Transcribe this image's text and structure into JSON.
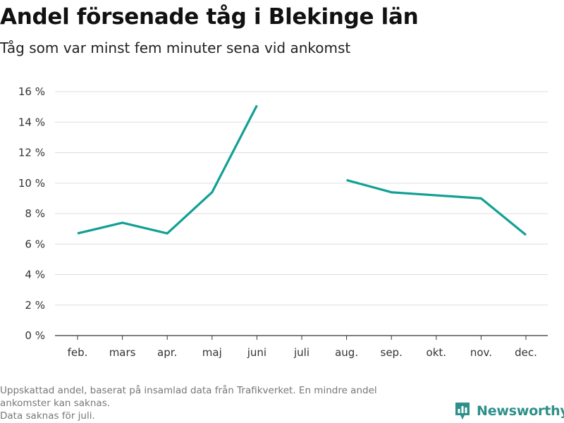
{
  "header": {
    "title": "Andel försenade tåg i Blekinge län",
    "subtitle": "Tåg som var minst fem minuter sena vid ankomst"
  },
  "footer": {
    "note_line1": "Uppskattad andel, baserat på insamlad data från Trafikverket. En mindre andel",
    "note_line2": "ankomster kan saknas.",
    "note_line3": "Data saknas för juli.",
    "brand": "Newsworthy"
  },
  "colors": {
    "line": "#12a094",
    "grid": "#dddddd",
    "axis": "#333333",
    "brand": "#2f8f89"
  },
  "chart_data": {
    "type": "line",
    "categories": [
      "feb.",
      "mars",
      "apr.",
      "maj",
      "juni",
      "juli",
      "aug.",
      "sep.",
      "okt.",
      "nov.",
      "dec."
    ],
    "series": [
      {
        "values": [
          6.7,
          7.4,
          6.7,
          9.4,
          15.1,
          null,
          10.2,
          9.4,
          9.2,
          9.0,
          6.6
        ]
      }
    ],
    "y_ticks": [
      0,
      2,
      4,
      6,
      8,
      10,
      12,
      14,
      16
    ],
    "y_tick_labels": [
      "0 %",
      "2 %",
      "4 %",
      "6 %",
      "8 %",
      "10 %",
      "12 %",
      "14 %",
      "16 %"
    ],
    "ylim": [
      0,
      16
    ],
    "grid": true,
    "legend": "none"
  }
}
